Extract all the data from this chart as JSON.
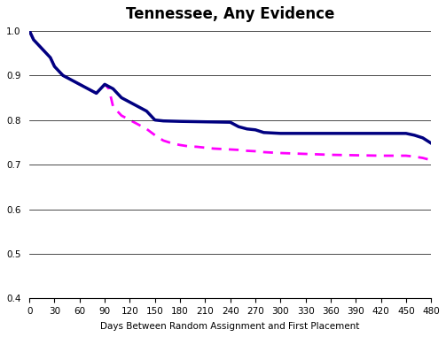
{
  "title": "Tennessee, Any Evidence",
  "xlabel": "Days Between Random Assignment and First Placement",
  "ylabel": "",
  "xlim": [
    0,
    480
  ],
  "ylim": [
    0.4,
    1.0
  ],
  "yticks": [
    0.4,
    0.5,
    0.6,
    0.7,
    0.8,
    0.9,
    1.0
  ],
  "xticks": [
    0,
    30,
    60,
    90,
    120,
    150,
    180,
    210,
    240,
    270,
    300,
    330,
    360,
    390,
    420,
    450,
    480
  ],
  "solid_x": [
    0,
    5,
    10,
    15,
    20,
    25,
    30,
    40,
    50,
    60,
    70,
    80,
    90,
    100,
    110,
    120,
    130,
    140,
    150,
    155,
    160,
    180,
    210,
    240,
    245,
    250,
    260,
    270,
    275,
    280,
    300,
    330,
    360,
    390,
    420,
    450,
    455,
    460,
    470,
    480
  ],
  "solid_y": [
    1.0,
    0.98,
    0.97,
    0.96,
    0.95,
    0.94,
    0.92,
    0.9,
    0.89,
    0.88,
    0.87,
    0.86,
    0.88,
    0.87,
    0.85,
    0.84,
    0.83,
    0.82,
    0.8,
    0.799,
    0.798,
    0.797,
    0.796,
    0.795,
    0.79,
    0.785,
    0.78,
    0.778,
    0.775,
    0.772,
    0.77,
    0.77,
    0.77,
    0.77,
    0.77,
    0.77,
    0.768,
    0.766,
    0.76,
    0.748
  ],
  "dashed_x": [
    0,
    5,
    10,
    15,
    20,
    25,
    30,
    40,
    50,
    60,
    70,
    80,
    90,
    95,
    100,
    110,
    120,
    130,
    140,
    150,
    160,
    170,
    180,
    190,
    200,
    210,
    220,
    230,
    240,
    250,
    260,
    270,
    280,
    300,
    330,
    360,
    390,
    420,
    450,
    460,
    470,
    480
  ],
  "dashed_y": [
    1.0,
    0.98,
    0.97,
    0.96,
    0.95,
    0.94,
    0.92,
    0.9,
    0.89,
    0.88,
    0.87,
    0.86,
    0.88,
    0.87,
    0.83,
    0.81,
    0.8,
    0.79,
    0.78,
    0.766,
    0.754,
    0.748,
    0.744,
    0.741,
    0.74,
    0.738,
    0.736,
    0.735,
    0.734,
    0.733,
    0.731,
    0.73,
    0.728,
    0.726,
    0.724,
    0.722,
    0.721,
    0.72,
    0.72,
    0.718,
    0.715,
    0.71
  ],
  "solid_color": "#000080",
  "dashed_color": "#ff00ff",
  "linewidth_solid": 2.5,
  "linewidth_dashed": 2.0,
  "background_color": "#ffffff",
  "grid_color": "#000000",
  "title_fontsize": 12,
  "label_fontsize": 7.5
}
